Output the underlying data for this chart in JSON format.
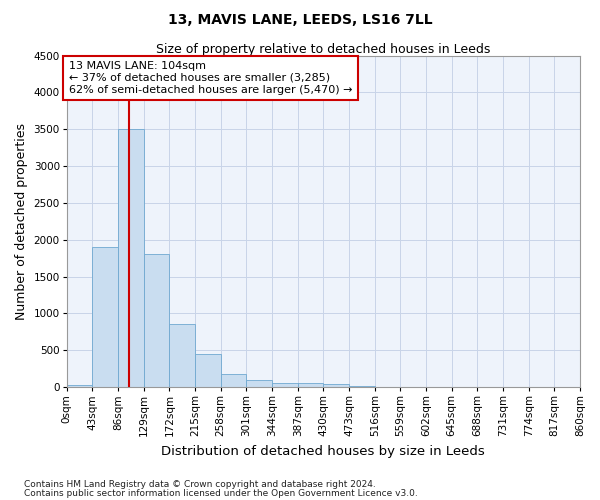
{
  "title": "13, MAVIS LANE, LEEDS, LS16 7LL",
  "subtitle": "Size of property relative to detached houses in Leeds",
  "xlabel": "Distribution of detached houses by size in Leeds",
  "ylabel": "Number of detached properties",
  "footnote1": "Contains HM Land Registry data © Crown copyright and database right 2024.",
  "footnote2": "Contains public sector information licensed under the Open Government Licence v3.0.",
  "annotation_line1": "13 MAVIS LANE: 104sqm",
  "annotation_line2": "← 37% of detached houses are smaller (3,285)",
  "annotation_line3": "62% of semi-detached houses are larger (5,470) →",
  "bin_edges": [
    0,
    43,
    86,
    129,
    172,
    215,
    258,
    301,
    344,
    387,
    430,
    473,
    516,
    559,
    602,
    645,
    688,
    731,
    774,
    817,
    860
  ],
  "bar_heights": [
    30,
    1900,
    3500,
    1800,
    850,
    450,
    175,
    100,
    60,
    50,
    45,
    10,
    5,
    3,
    2,
    1,
    1,
    0,
    0,
    0
  ],
  "bar_color": "#c9ddf0",
  "bar_edge_color": "#6fa8d0",
  "property_size": 104,
  "red_line_color": "#cc0000",
  "annotation_box_edge_color": "#cc0000",
  "ylim": [
    0,
    4500
  ],
  "yticks": [
    0,
    500,
    1000,
    1500,
    2000,
    2500,
    3000,
    3500,
    4000,
    4500
  ],
  "xlim": [
    0,
    860
  ],
  "background_color": "#eef3fb",
  "grid_color": "#c8d4e8",
  "title_fontsize": 10,
  "subtitle_fontsize": 9,
  "axis_label_fontsize": 9,
  "tick_fontsize": 7.5,
  "annotation_fontsize": 8,
  "footnote_fontsize": 6.5
}
